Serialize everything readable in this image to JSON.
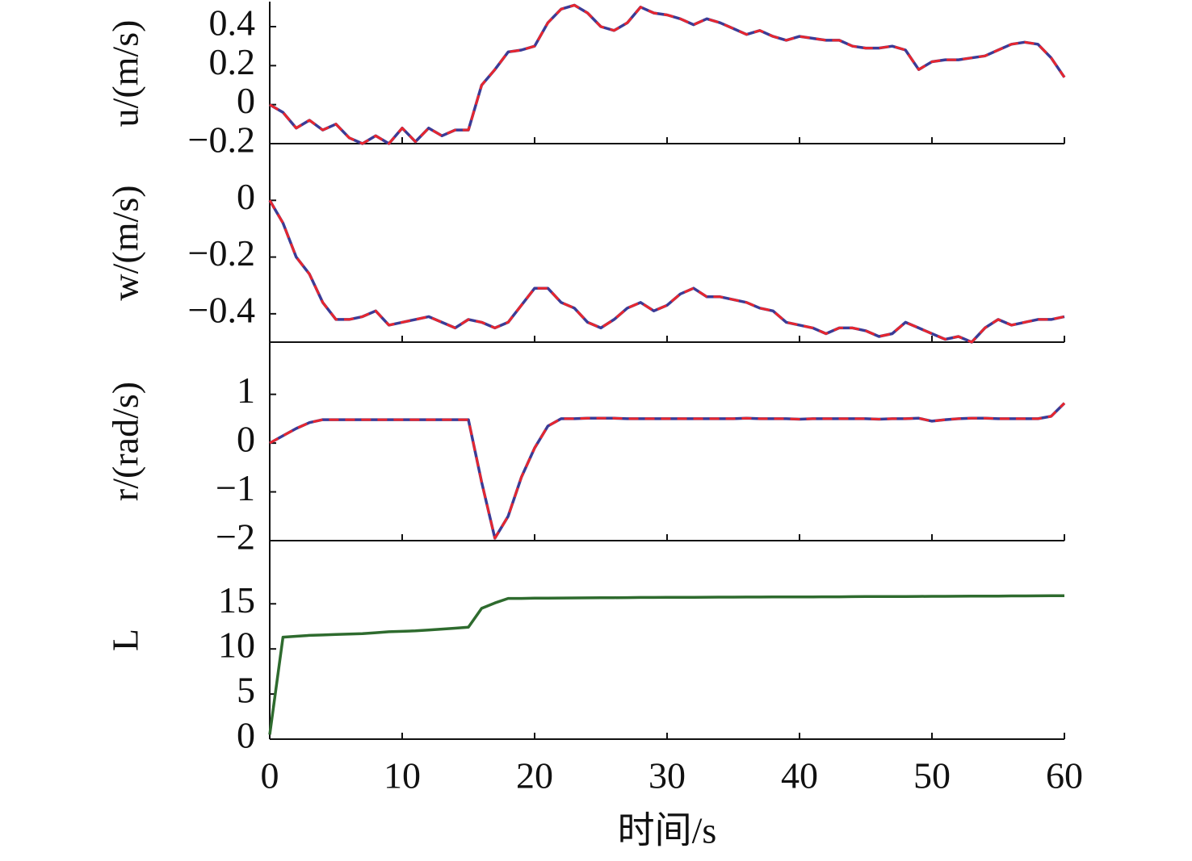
{
  "chart_data": [
    {
      "type": "line",
      "ylabel": "u/(m/s)",
      "x": [
        0,
        1,
        2,
        3,
        4,
        5,
        6,
        7,
        8,
        9,
        10,
        11,
        12,
        13,
        14,
        15,
        16,
        17,
        18,
        19,
        20,
        21,
        22,
        23,
        24,
        25,
        26,
        27,
        28,
        29,
        30,
        31,
        32,
        33,
        34,
        35,
        36,
        37,
        38,
        39,
        40,
        41,
        42,
        43,
        44,
        45,
        46,
        47,
        48,
        49,
        50,
        51,
        52,
        53,
        54,
        55,
        56,
        57,
        58,
        59,
        60
      ],
      "series": [
        {
          "color": "#3b3b96",
          "values": [
            0.0,
            -0.04,
            -0.12,
            -0.08,
            -0.13,
            -0.1,
            -0.17,
            -0.2,
            -0.16,
            -0.2,
            -0.12,
            -0.19,
            -0.12,
            -0.16,
            -0.13,
            -0.13,
            0.1,
            0.18,
            0.27,
            0.28,
            0.3,
            0.42,
            0.49,
            0.51,
            0.47,
            0.4,
            0.38,
            0.42,
            0.5,
            0.47,
            0.46,
            0.44,
            0.41,
            0.44,
            0.42,
            0.39,
            0.36,
            0.38,
            0.35,
            0.33,
            0.35,
            0.34,
            0.33,
            0.33,
            0.3,
            0.29,
            0.29,
            0.3,
            0.28,
            0.18,
            0.22,
            0.23,
            0.23,
            0.24,
            0.25,
            0.28,
            0.31,
            0.32,
            0.31,
            0.24,
            0.14
          ]
        },
        {
          "color": "#e8262e",
          "dash": true,
          "values": [
            0.0,
            -0.04,
            -0.12,
            -0.08,
            -0.13,
            -0.1,
            -0.17,
            -0.2,
            -0.16,
            -0.2,
            -0.12,
            -0.19,
            -0.12,
            -0.16,
            -0.13,
            -0.13,
            0.1,
            0.18,
            0.27,
            0.28,
            0.3,
            0.42,
            0.49,
            0.51,
            0.47,
            0.4,
            0.38,
            0.42,
            0.5,
            0.47,
            0.46,
            0.44,
            0.41,
            0.44,
            0.42,
            0.39,
            0.36,
            0.38,
            0.35,
            0.33,
            0.35,
            0.34,
            0.33,
            0.33,
            0.3,
            0.29,
            0.29,
            0.3,
            0.28,
            0.18,
            0.22,
            0.23,
            0.23,
            0.24,
            0.25,
            0.28,
            0.31,
            0.32,
            0.31,
            0.24,
            0.14
          ]
        }
      ],
      "xlim": [
        0,
        60
      ],
      "ylim": [
        -0.2,
        0.52
      ],
      "yticks": [
        {
          "value": -0.2,
          "label": "−0.2"
        },
        0,
        0.2,
        0.4
      ]
    },
    {
      "type": "line",
      "ylabel": "w/(m/s)",
      "x": [
        0,
        1,
        2,
        3,
        4,
        5,
        6,
        7,
        8,
        9,
        10,
        11,
        12,
        13,
        14,
        15,
        16,
        17,
        18,
        19,
        20,
        21,
        22,
        23,
        24,
        25,
        26,
        27,
        28,
        29,
        30,
        31,
        32,
        33,
        34,
        35,
        36,
        37,
        38,
        39,
        40,
        41,
        42,
        43,
        44,
        45,
        46,
        47,
        48,
        49,
        50,
        51,
        52,
        53,
        54,
        55,
        56,
        57,
        58,
        59,
        60
      ],
      "series": [
        {
          "color": "#3b3b96",
          "values": [
            0,
            -0.08,
            -0.2,
            -0.26,
            -0.36,
            -0.42,
            -0.42,
            -0.41,
            -0.39,
            -0.44,
            -0.43,
            -0.42,
            -0.41,
            -0.43,
            -0.45,
            -0.42,
            -0.43,
            -0.45,
            -0.43,
            -0.37,
            -0.31,
            -0.31,
            -0.36,
            -0.38,
            -0.43,
            -0.45,
            -0.42,
            -0.38,
            -0.36,
            -0.39,
            -0.37,
            -0.33,
            -0.31,
            -0.34,
            -0.34,
            -0.35,
            -0.36,
            -0.38,
            -0.39,
            -0.43,
            -0.44,
            -0.45,
            -0.47,
            -0.45,
            -0.45,
            -0.46,
            -0.48,
            -0.47,
            -0.43,
            -0.45,
            -0.47,
            -0.49,
            -0.48,
            -0.5,
            -0.45,
            -0.42,
            -0.44,
            -0.43,
            -0.42,
            -0.42,
            -0.41
          ]
        },
        {
          "color": "#e8262e",
          "dash": true,
          "values": [
            0,
            -0.08,
            -0.2,
            -0.26,
            -0.36,
            -0.42,
            -0.42,
            -0.41,
            -0.39,
            -0.44,
            -0.43,
            -0.42,
            -0.41,
            -0.43,
            -0.45,
            -0.42,
            -0.43,
            -0.45,
            -0.43,
            -0.37,
            -0.31,
            -0.31,
            -0.36,
            -0.38,
            -0.43,
            -0.45,
            -0.42,
            -0.38,
            -0.36,
            -0.39,
            -0.37,
            -0.33,
            -0.31,
            -0.34,
            -0.34,
            -0.35,
            -0.36,
            -0.38,
            -0.39,
            -0.43,
            -0.44,
            -0.45,
            -0.47,
            -0.45,
            -0.45,
            -0.46,
            -0.48,
            -0.47,
            -0.43,
            -0.45,
            -0.47,
            -0.49,
            -0.48,
            -0.5,
            -0.45,
            -0.42,
            -0.44,
            -0.43,
            -0.42,
            -0.42,
            -0.41
          ]
        }
      ],
      "xlim": [
        0,
        60
      ],
      "ylim": [
        -0.5,
        0.2
      ],
      "yticks": [
        {
          "value": -0.4,
          "label": "−0.4"
        },
        {
          "value": -0.2,
          "label": "−0.2"
        },
        0
      ]
    },
    {
      "type": "line",
      "ylabel": "r/(rad/s)",
      "x": [
        0,
        1,
        2,
        3,
        4,
        5,
        6,
        7,
        8,
        9,
        10,
        11,
        12,
        13,
        14,
        15,
        16,
        17,
        18,
        19,
        20,
        21,
        22,
        23,
        24,
        25,
        26,
        27,
        28,
        29,
        30,
        31,
        32,
        33,
        34,
        35,
        36,
        37,
        38,
        39,
        40,
        41,
        42,
        43,
        44,
        45,
        46,
        47,
        48,
        49,
        50,
        51,
        52,
        53,
        54,
        55,
        56,
        57,
        58,
        59,
        60
      ],
      "series": [
        {
          "color": "#3b3b96",
          "values": [
            0,
            0.15,
            0.3,
            0.42,
            0.48,
            0.48,
            0.48,
            0.48,
            0.48,
            0.48,
            0.48,
            0.48,
            0.48,
            0.48,
            0.48,
            0.48,
            -0.8,
            -1.95,
            -1.5,
            -0.7,
            -0.1,
            0.35,
            0.5,
            0.5,
            0.51,
            0.51,
            0.51,
            0.5,
            0.5,
            0.5,
            0.5,
            0.5,
            0.5,
            0.5,
            0.5,
            0.5,
            0.51,
            0.5,
            0.5,
            0.5,
            0.49,
            0.5,
            0.5,
            0.5,
            0.5,
            0.5,
            0.49,
            0.5,
            0.5,
            0.51,
            0.45,
            0.48,
            0.5,
            0.51,
            0.51,
            0.5,
            0.5,
            0.5,
            0.5,
            0.55,
            0.82
          ]
        },
        {
          "color": "#e8262e",
          "dash": true,
          "values": [
            0,
            0.15,
            0.3,
            0.42,
            0.48,
            0.48,
            0.48,
            0.48,
            0.48,
            0.48,
            0.48,
            0.48,
            0.48,
            0.48,
            0.48,
            0.48,
            -0.8,
            -1.95,
            -1.5,
            -0.7,
            -0.1,
            0.35,
            0.5,
            0.5,
            0.51,
            0.51,
            0.51,
            0.5,
            0.5,
            0.5,
            0.5,
            0.5,
            0.5,
            0.5,
            0.5,
            0.5,
            0.51,
            0.5,
            0.5,
            0.5,
            0.49,
            0.5,
            0.5,
            0.5,
            0.5,
            0.5,
            0.49,
            0.5,
            0.5,
            0.51,
            0.45,
            0.48,
            0.5,
            0.51,
            0.51,
            0.5,
            0.5,
            0.5,
            0.5,
            0.55,
            0.82
          ]
        }
      ],
      "xlim": [
        0,
        60
      ],
      "ylim": [
        -2,
        2.07
      ],
      "yticks": [
        {
          "value": -2,
          "label": "−2"
        },
        {
          "value": -1,
          "label": "−1"
        },
        0,
        1
      ]
    },
    {
      "type": "line",
      "ylabel": "L",
      "xlabel": "时间/s",
      "x": [
        0,
        1,
        2,
        3,
        4,
        5,
        6,
        7,
        8,
        9,
        10,
        11,
        12,
        13,
        14,
        15,
        16,
        17,
        18,
        19,
        20,
        21,
        22,
        23,
        24,
        25,
        26,
        27,
        28,
        29,
        30,
        31,
        32,
        33,
        34,
        35,
        36,
        37,
        38,
        39,
        40,
        41,
        42,
        43,
        44,
        45,
        46,
        47,
        48,
        49,
        50,
        51,
        52,
        53,
        54,
        55,
        56,
        57,
        58,
        59,
        60
      ],
      "series": [
        {
          "color": "#2e6b2e",
          "values": [
            0.5,
            11.3,
            11.4,
            11.5,
            11.55,
            11.6,
            11.65,
            11.7,
            11.8,
            11.9,
            11.95,
            12.0,
            12.1,
            12.2,
            12.3,
            12.4,
            14.5,
            15.1,
            15.6,
            15.6,
            15.62,
            15.63,
            15.64,
            15.65,
            15.66,
            15.67,
            15.68,
            15.69,
            15.7,
            15.7,
            15.71,
            15.72,
            15.72,
            15.73,
            15.74,
            15.74,
            15.75,
            15.75,
            15.76,
            15.76,
            15.77,
            15.77,
            15.78,
            15.78,
            15.79,
            15.8,
            15.8,
            15.81,
            15.81,
            15.82,
            15.83,
            15.83,
            15.84,
            15.85,
            15.85,
            15.86,
            15.87,
            15.87,
            15.88,
            15.89,
            15.9
          ]
        }
      ],
      "xlim": [
        0,
        60
      ],
      "ylim": [
        0,
        22
      ],
      "xticks": [
        0,
        10,
        20,
        30,
        40,
        50,
        60
      ],
      "yticks": [
        0,
        5,
        10,
        15
      ]
    }
  ]
}
